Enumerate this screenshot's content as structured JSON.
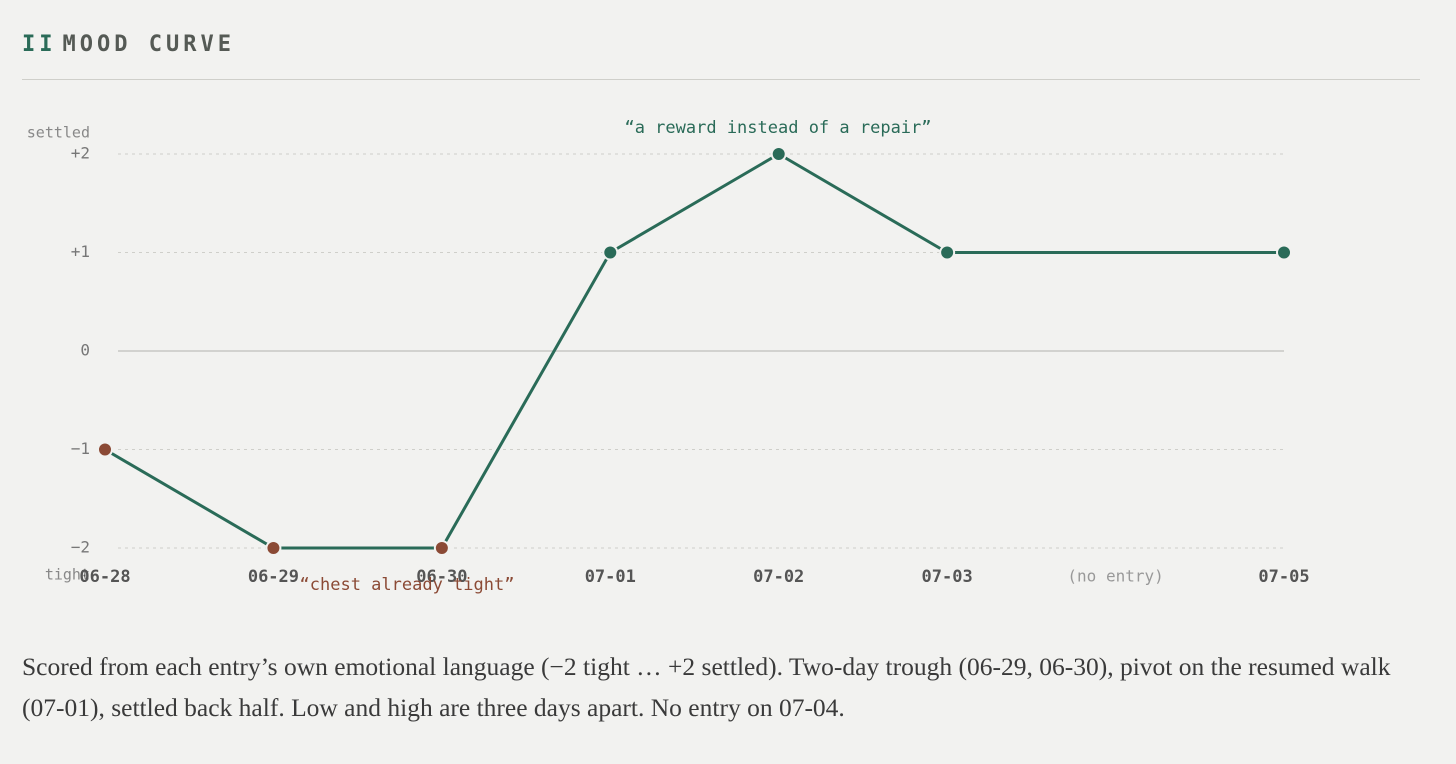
{
  "section": {
    "numeral": "II",
    "title": "MOOD CURVE"
  },
  "chart_data": {
    "type": "line",
    "categories": [
      "06-28",
      "06-29",
      "06-30",
      "07-01",
      "07-02",
      "07-03",
      "(no entry)",
      "07-05"
    ],
    "values": [
      -1,
      -2,
      -2,
      1,
      2,
      1,
      null,
      1
    ],
    "color": "#2a6b58",
    "negative_color": "#8b4a35",
    "ylim": [
      -2,
      2
    ],
    "yticks": [
      {
        "value": -2,
        "label": "−2"
      },
      {
        "value": -1,
        "label": "−1"
      },
      0,
      {
        "value": 1,
        "label": "+1"
      },
      {
        "value": 2,
        "label": "+2"
      }
    ],
    "y_top_label": "settled",
    "y_bottom_label": "tight",
    "grid": true,
    "annotations": [
      "“a reward instead of a repair”",
      "“chest already tight”"
    ]
  },
  "caption": "Scored from each entry’s own emotional language (−2 tight … +2 settled). Two-day trough (06-29, 06-30), pivot on the resumed walk (07-01), settled back half. Low and high are three days apart. No entry on 07-04."
}
